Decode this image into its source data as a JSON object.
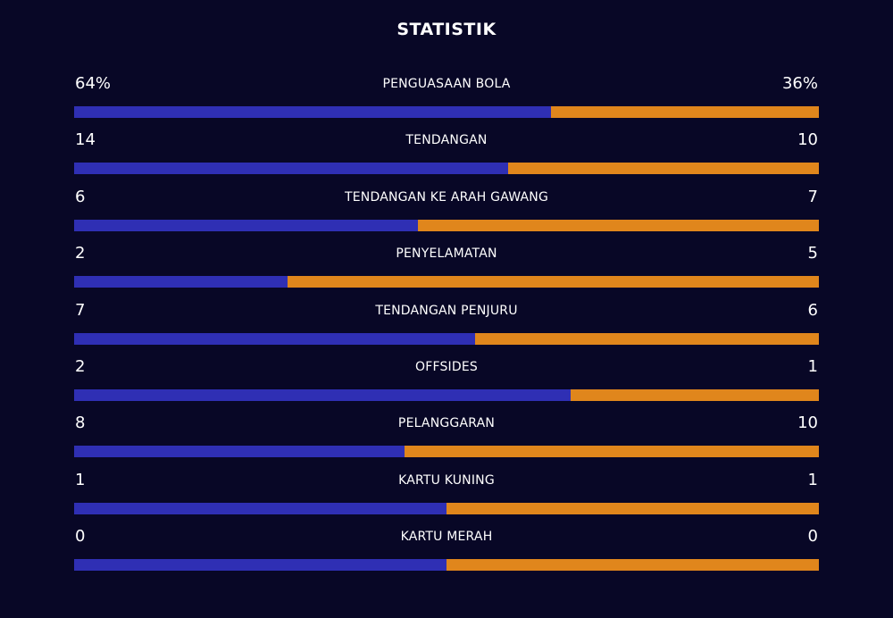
{
  "title": "STATISTIK",
  "colors": {
    "background": "#080726",
    "home": "#2f2fb4",
    "away": "#e0861c"
  },
  "stats": [
    {
      "label": "PENGUASAAN BOLA",
      "left": "64%",
      "right": "36%",
      "left_share": 0.64
    },
    {
      "label": "TENDANGAN",
      "left": "14",
      "right": "10",
      "left_share": 0.583
    },
    {
      "label": "TENDANGAN KE ARAH GAWANG",
      "left": "6",
      "right": "7",
      "left_share": 0.462
    },
    {
      "label": "PENYELAMATAN",
      "left": "2",
      "right": "5",
      "left_share": 0.286
    },
    {
      "label": "TENDANGAN PENJURU",
      "left": "7",
      "right": "6",
      "left_share": 0.538
    },
    {
      "label": "OFFSIDES",
      "left": "2",
      "right": "1",
      "left_share": 0.667
    },
    {
      "label": "PELANGGARAN",
      "left": "8",
      "right": "10",
      "left_share": 0.444
    },
    {
      "label": "KARTU KUNING",
      "left": "1",
      "right": "1",
      "left_share": 0.5
    },
    {
      "label": "KARTU MERAH",
      "left": "0",
      "right": "0",
      "left_share": 0.5
    }
  ]
}
